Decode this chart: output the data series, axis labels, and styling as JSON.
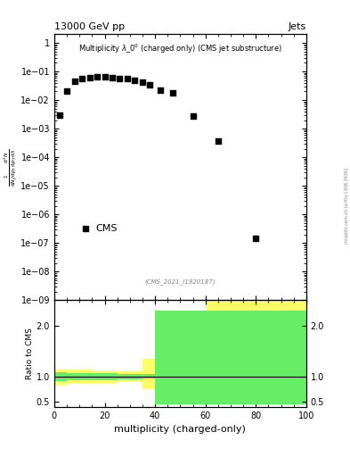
{
  "title_top": "13000 GeV pp",
  "title_right": "Jets",
  "main_title": "Multiplicity $\\lambda\\_0^0$ (charged only) (CMS jet substructure)",
  "cms_label": "CMS",
  "watermark": "(CMS_2021_I1920187)",
  "arxiv_label": "mcplots.cern.ch [arXiv:1306.3436]",
  "data_x": [
    2,
    5,
    8,
    11,
    14,
    17,
    20,
    23,
    26,
    29,
    32,
    35,
    38,
    42,
    47,
    55,
    65,
    80
  ],
  "data_y": [
    0.003,
    0.021,
    0.045,
    0.055,
    0.062,
    0.065,
    0.065,
    0.063,
    0.058,
    0.055,
    0.048,
    0.042,
    0.035,
    0.023,
    0.018,
    0.0028,
    0.00036,
    1.5e-07
  ],
  "ylabel_main": "$\\frac{1}{\\mathrm{d}N_j/\\mathrm{d}p_T}\\frac{\\mathrm{d}^2N}{\\mathrm{d}p_T\\,\\mathrm{d}\\lambda}$",
  "xlabel": "multiplicity (charged-only)",
  "ylabel_ratio": "Ratio to CMS",
  "ylim_main": [
    1e-09,
    2.0
  ],
  "xlim": [
    0,
    100
  ],
  "ylim_ratio": [
    0.4,
    2.5
  ],
  "ratio_yticks": [
    0.5,
    1.0,
    2.0
  ],
  "green_band_x": [
    0,
    5,
    10,
    15,
    20,
    25,
    30,
    35,
    40,
    65,
    100
  ],
  "green_band_lo": [
    0.9,
    0.92,
    0.93,
    0.93,
    0.93,
    0.94,
    0.94,
    0.95,
    0.45,
    0.45,
    0.45
  ],
  "green_band_hi": [
    1.08,
    1.07,
    1.07,
    1.06,
    1.06,
    1.05,
    1.05,
    1.05,
    2.3,
    2.3,
    2.3
  ],
  "yellow_band_x": [
    0,
    5,
    10,
    15,
    20,
    25,
    30,
    35,
    40,
    50,
    60,
    65,
    100
  ],
  "yellow_band_lo": [
    0.82,
    0.85,
    0.86,
    0.87,
    0.87,
    0.88,
    0.88,
    0.75,
    0.65,
    0.65,
    0.65,
    0.45,
    0.45
  ],
  "yellow_band_hi": [
    1.15,
    1.13,
    1.13,
    1.12,
    1.12,
    1.1,
    1.1,
    1.35,
    1.38,
    1.38,
    2.5,
    2.5,
    2.5
  ],
  "background_color": "#ffffff",
  "marker_color": "#000000",
  "green_color": "#66ee66",
  "yellow_color": "#ffff66"
}
